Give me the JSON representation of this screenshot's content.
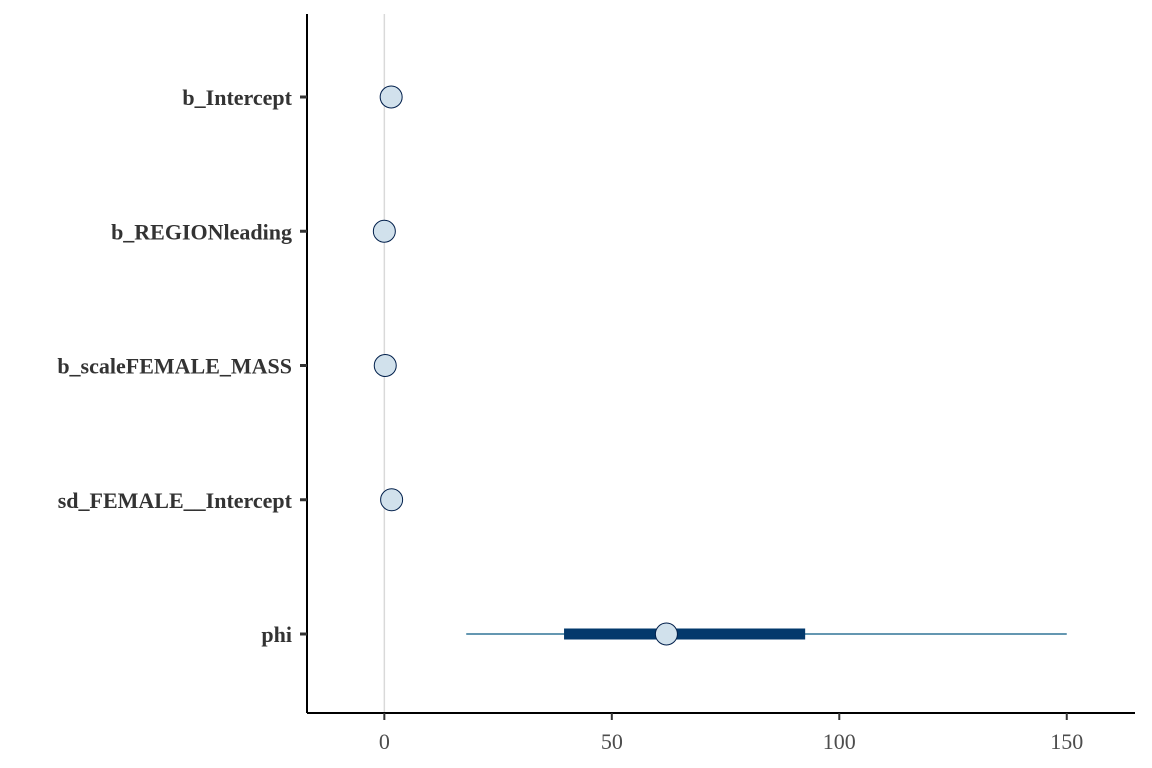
{
  "chart_data": {
    "type": "interval",
    "title": "",
    "xlabel": "",
    "ylabel": "",
    "xlim": [
      -17,
      165
    ],
    "x_ticks": [
      0,
      50,
      100,
      150
    ],
    "x_tick_labels": [
      "0",
      "50",
      "100",
      "150"
    ],
    "reference_line_x": 0,
    "grid": false,
    "colors": {
      "outer_interval": "#6497b1",
      "inner_interval": "#03396c",
      "point_fill": "#d1e1ec",
      "point_stroke": "#011f4b",
      "reference_line": "#d9d9d9",
      "axis": "#000000"
    },
    "parameters": [
      {
        "name": "b_Intercept",
        "median": 1.5,
        "inner_low": 1.2,
        "inner_high": 1.8,
        "outer_low": 0.9,
        "outer_high": 2.1
      },
      {
        "name": "b_REGIONleading",
        "median": 0.0,
        "inner_low": -0.2,
        "inner_high": 0.2,
        "outer_low": -0.5,
        "outer_high": 0.5
      },
      {
        "name": "b_scaleFEMALE_MASS",
        "median": 0.2,
        "inner_low": 0.0,
        "inner_high": 0.4,
        "outer_low": -0.2,
        "outer_high": 0.6
      },
      {
        "name": "sd_FEMALE__Intercept",
        "median": 1.6,
        "inner_low": 1.2,
        "inner_high": 2.0,
        "outer_low": 0.8,
        "outer_high": 2.6
      },
      {
        "name": "phi",
        "median": 62,
        "inner_low": 39.5,
        "inner_high": 92.5,
        "outer_low": 18,
        "outer_high": 150
      }
    ]
  }
}
